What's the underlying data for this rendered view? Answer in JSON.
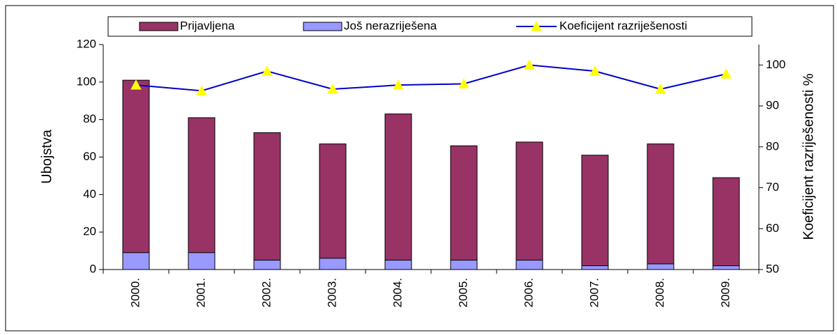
{
  "chart_data": {
    "type": "bar",
    "categories": [
      "2000.",
      "2001.",
      "2002.",
      "2003.",
      "2004.",
      "2005.",
      "2006.",
      "2007.",
      "2008.",
      "2009."
    ],
    "ylabel": "Ubojstva",
    "y2label": "Koeficijent razriješenosti %",
    "ylim": [
      0,
      120
    ],
    "yticks": [
      0,
      20,
      40,
      60,
      80,
      100,
      120
    ],
    "y2lim": [
      50,
      105
    ],
    "y2ticks": [
      50,
      60,
      70,
      80,
      90,
      100
    ],
    "series": [
      {
        "name": "Prijavljena",
        "type": "bar",
        "color": "#993366",
        "values": [
          101,
          81,
          73,
          67,
          83,
          66,
          68,
          61,
          67,
          49
        ]
      },
      {
        "name": "Još nerazriješena",
        "type": "bar",
        "color": "#9999ff",
        "values": [
          9,
          9,
          5,
          6,
          5,
          5,
          5,
          2,
          3,
          2
        ]
      },
      {
        "name": "Koeficijent razriješenosti",
        "type": "line",
        "axis": "y2",
        "color": "#0000cc",
        "marker_color": "#ffff00",
        "values": [
          95.1,
          93.7,
          98.5,
          94.1,
          95.1,
          95.4,
          100,
          98.5,
          94.1,
          97.8
        ]
      }
    ]
  }
}
